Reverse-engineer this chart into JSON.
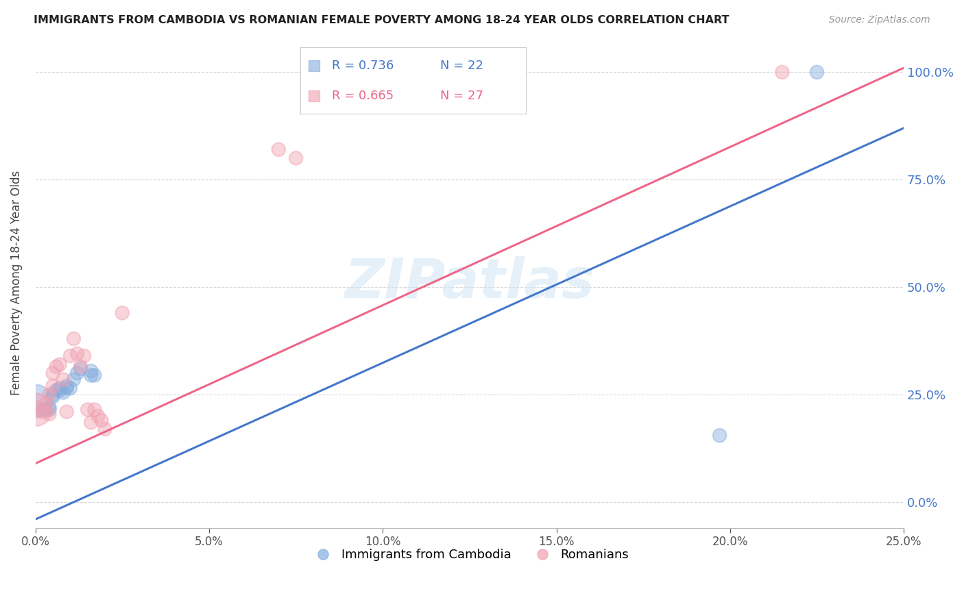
{
  "title": "IMMIGRANTS FROM CAMBODIA VS ROMANIAN FEMALE POVERTY AMONG 18-24 YEAR OLDS CORRELATION CHART",
  "source": "Source: ZipAtlas.com",
  "ylabel": "Female Poverty Among 18-24 Year Olds",
  "xlim": [
    0.0,
    0.25
  ],
  "ylim": [
    -0.06,
    1.08
  ],
  "yticks": [
    0.0,
    0.25,
    0.5,
    0.75,
    1.0
  ],
  "xticks": [
    0.0,
    0.05,
    0.1,
    0.15,
    0.2,
    0.25
  ],
  "background_color": "#ffffff",
  "watermark": "ZIPatlas",
  "legend_r_blue": "R = 0.736",
  "legend_n_blue": "N = 22",
  "legend_r_pink": "R = 0.665",
  "legend_n_pink": "N = 27",
  "color_blue": "#85adde",
  "color_pink": "#f0a0b0",
  "color_blue_line": "#4477cc",
  "color_pink_line": "#ee6688",
  "color_right_axis": "#4477cc",
  "cambodia_x": [
    0.0,
    0.002,
    0.003,
    0.004,
    0.004,
    0.005,
    0.005,
    0.006,
    0.007,
    0.007,
    0.008,
    0.009,
    0.009,
    0.01,
    0.011,
    0.012,
    0.013,
    0.016,
    0.016,
    0.017,
    0.197,
    0.225
  ],
  "cambodia_y": [
    0.235,
    0.215,
    0.215,
    0.215,
    0.22,
    0.245,
    0.25,
    0.26,
    0.26,
    0.265,
    0.255,
    0.265,
    0.27,
    0.265,
    0.285,
    0.3,
    0.31,
    0.295,
    0.305,
    0.295,
    0.155,
    1.0
  ],
  "cambodia_sizes": [
    1200,
    200,
    200,
    200,
    200,
    200,
    200,
    200,
    200,
    200,
    200,
    200,
    200,
    200,
    200,
    200,
    200,
    200,
    200,
    200,
    200,
    200
  ],
  "romanian_x": [
    0.0,
    0.001,
    0.002,
    0.003,
    0.004,
    0.004,
    0.005,
    0.005,
    0.006,
    0.007,
    0.008,
    0.009,
    0.01,
    0.011,
    0.012,
    0.013,
    0.014,
    0.015,
    0.016,
    0.017,
    0.018,
    0.019,
    0.02,
    0.025,
    0.07,
    0.075,
    0.215
  ],
  "romanian_y": [
    0.215,
    0.22,
    0.21,
    0.23,
    0.205,
    0.25,
    0.27,
    0.3,
    0.315,
    0.32,
    0.285,
    0.21,
    0.34,
    0.38,
    0.345,
    0.315,
    0.34,
    0.215,
    0.185,
    0.215,
    0.2,
    0.19,
    0.17,
    0.44,
    0.82,
    0.8,
    1.0
  ],
  "romanian_sizes": [
    1200,
    200,
    200,
    200,
    200,
    200,
    200,
    200,
    200,
    200,
    200,
    200,
    200,
    200,
    200,
    200,
    200,
    200,
    200,
    200,
    200,
    200,
    200,
    200,
    200,
    200,
    200
  ],
  "blue_line_x": [
    0.0,
    0.25
  ],
  "blue_line_y": [
    -0.04,
    0.87
  ],
  "pink_line_x": [
    0.0,
    0.25
  ],
  "pink_line_y": [
    0.09,
    1.01
  ]
}
